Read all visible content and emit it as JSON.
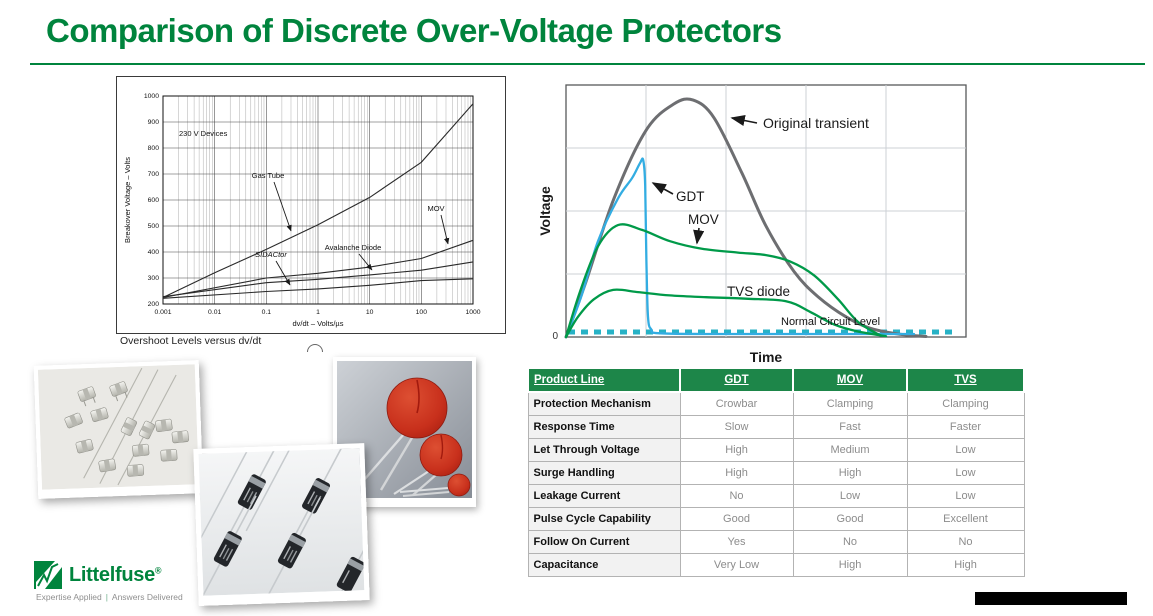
{
  "slide": {
    "title": "Comparison of Discrete Over-Voltage Protectors",
    "accent_green": "#00843d",
    "table_header_green": "#1d8649"
  },
  "chart_data": [
    {
      "type": "line",
      "x_scale": "log",
      "title": "Overshoot Levels versus dv/dt",
      "xlabel": "dv/dt – Volts/µs",
      "ylabel": "Breakover Voltage – Volts",
      "annotation": "230 V Devices",
      "xlim": [
        0.001,
        1000
      ],
      "ylim": [
        200,
        1000
      ],
      "grid": true,
      "x_ticks": [
        "0.001",
        "0.01",
        "0.1",
        "1",
        "10",
        "100",
        "1000"
      ],
      "y_ticks": [
        200,
        300,
        400,
        500,
        600,
        700,
        800,
        900,
        1000
      ],
      "series": [
        {
          "name": "Gas Tube",
          "points": [
            [
              0.001,
              225
            ],
            [
              0.01,
              320
            ],
            [
              0.1,
              410
            ],
            [
              1,
              505
            ],
            [
              10,
              610
            ],
            [
              100,
              745
            ],
            [
              1000,
              970
            ]
          ]
        },
        {
          "name": "MOV",
          "points": [
            [
              0.001,
              225
            ],
            [
              0.1,
              300
            ],
            [
              1,
              318
            ],
            [
              10,
              342
            ],
            [
              100,
              375
            ],
            [
              1000,
              445
            ]
          ]
        },
        {
          "name": "Avalanche Diode",
          "points": [
            [
              0.001,
              228
            ],
            [
              0.1,
              282
            ],
            [
              1,
              295
            ],
            [
              10,
              312
            ],
            [
              100,
              330
            ],
            [
              1000,
              362
            ]
          ]
        },
        {
          "name": "SIDACtor",
          "points": [
            [
              0.001,
              222
            ],
            [
              0.1,
              248
            ],
            [
              1,
              258
            ],
            [
              10,
              272
            ],
            [
              100,
              290
            ],
            [
              1000,
              297
            ]
          ]
        }
      ]
    },
    {
      "type": "line",
      "xlabel": "Time",
      "ylabel": "Voltage",
      "origin_label": "0",
      "grid": true,
      "annotations": [
        "Normal Circuit Level"
      ],
      "normal_circuit_level_norm": 0.02,
      "series": [
        {
          "name": "Original transient",
          "color": "#6d6e71",
          "points_norm": [
            [
              0,
              0
            ],
            [
              0.05,
              0.22
            ],
            [
              0.12,
              0.55
            ],
            [
              0.2,
              0.82
            ],
            [
              0.27,
              0.925
            ],
            [
              0.318,
              0.94
            ],
            [
              0.37,
              0.87
            ],
            [
              0.44,
              0.65
            ],
            [
              0.5,
              0.44
            ],
            [
              0.57,
              0.26
            ],
            [
              0.63,
              0.16
            ],
            [
              0.7,
              0.08
            ],
            [
              0.76,
              0.035
            ],
            [
              0.83,
              0.012
            ],
            [
              0.9,
              0.002
            ]
          ]
        },
        {
          "name": "GDT",
          "color": "#33ade2",
          "points_norm": [
            [
              0,
              0
            ],
            [
              0.04,
              0.17
            ],
            [
              0.08,
              0.38
            ],
            [
              0.13,
              0.55
            ],
            [
              0.165,
              0.63
            ],
            [
              0.185,
              0.69
            ],
            [
              0.193,
              0.702
            ],
            [
              0.198,
              0.6
            ],
            [
              0.201,
              0.3
            ],
            [
              0.205,
              0.08
            ],
            [
              0.213,
              0.03
            ],
            [
              0.23,
              0.015
            ],
            [
              0.35,
              0.012
            ],
            [
              0.55,
              0.012
            ],
            [
              0.75,
              0.012
            ],
            [
              0.87,
              0.012
            ]
          ]
        },
        {
          "name": "MOV",
          "color": "#009a49",
          "points_norm": [
            [
              0,
              0
            ],
            [
              0.035,
              0.18
            ],
            [
              0.08,
              0.36
            ],
            [
              0.13,
              0.444
            ],
            [
              0.19,
              0.425
            ],
            [
              0.26,
              0.38
            ],
            [
              0.34,
              0.35
            ],
            [
              0.43,
              0.335
            ],
            [
              0.5,
              0.325
            ],
            [
              0.56,
              0.3
            ],
            [
              0.62,
              0.245
            ],
            [
              0.68,
              0.15
            ],
            [
              0.73,
              0.06
            ],
            [
              0.787,
              0.005
            ]
          ]
        },
        {
          "name": "TVS diode",
          "color": "#009a49",
          "points_norm": [
            [
              0,
              0
            ],
            [
              0.03,
              0.08
            ],
            [
              0.07,
              0.15
            ],
            [
              0.118,
              0.187
            ],
            [
              0.18,
              0.178
            ],
            [
              0.26,
              0.165
            ],
            [
              0.35,
              0.158
            ],
            [
              0.45,
              0.152
            ],
            [
              0.55,
              0.142
            ],
            [
              0.61,
              0.1
            ],
            [
              0.67,
              0.05
            ],
            [
              0.73,
              0.022
            ],
            [
              0.8,
              0.003
            ]
          ]
        }
      ]
    }
  ],
  "table": {
    "headers": [
      "Product Line",
      "GDT",
      "MOV",
      "TVS"
    ],
    "rows": [
      {
        "label": "Protection Mechanism",
        "gdt": "Crowbar",
        "mov": "Clamping",
        "tvs": "Clamping"
      },
      {
        "label": "Response Time",
        "gdt": "Slow",
        "mov": "Fast",
        "tvs": "Faster"
      },
      {
        "label": "Let Through Voltage",
        "gdt": "High",
        "mov": "Medium",
        "tvs": "Low"
      },
      {
        "label": "Surge Handling",
        "gdt": "High",
        "mov": "High",
        "tvs": "Low"
      },
      {
        "label": "Leakage Current",
        "gdt": "No",
        "mov": "Low",
        "tvs": "Low"
      },
      {
        "label": "Pulse Cycle Capability",
        "gdt": "Good",
        "mov": "Good",
        "tvs": "Excellent"
      },
      {
        "label": "Follow On Current",
        "gdt": "Yes",
        "mov": "No",
        "tvs": "No"
      },
      {
        "label": "Capacitance",
        "gdt": "Very Low",
        "mov": "High",
        "tvs": "High"
      }
    ]
  },
  "photos": {
    "gdt": "gas-discharge-tube-components-photo",
    "tvs": "tvs-diode-components-photo",
    "mov": "metal-oxide-varistor-components-photo"
  },
  "logo": {
    "brand": "Littelfuse",
    "registered": "®",
    "tagline_left": "Expertise Applied",
    "tagline_sep": "|",
    "tagline_right": "Answers Delivered"
  }
}
